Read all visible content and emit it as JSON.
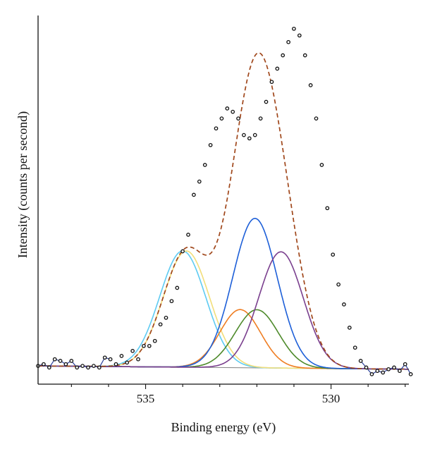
{
  "chart_data": {
    "type": "line",
    "xlabel": "Binding energy (eV)",
    "ylabel": "Intensity (counts per second)",
    "x_reversed": true,
    "xlim": [
      537.9,
      527.9
    ],
    "ylim": [
      -0.5,
      10.6
    ],
    "xticks": [
      535,
      530
    ],
    "xtick_labels": [
      "535",
      "530"
    ],
    "grid": false,
    "legend": "none",
    "baseline": {
      "y_start": 0.05,
      "y_end": -0.05,
      "color": "#8a8a8a"
    },
    "components": [
      {
        "center": 534.0,
        "amplitude": 3.5,
        "sigma": 0.62,
        "color": "#5ecbf2"
      },
      {
        "center": 533.9,
        "amplitude": 3.5,
        "sigma": 0.62,
        "color": "#f2de7a"
      },
      {
        "center": 532.45,
        "amplitude": 1.75,
        "sigma": 0.55,
        "color": "#ef7d22"
      },
      {
        "center": 532.0,
        "amplitude": 1.75,
        "sigma": 0.58,
        "color": "#4e8a2b"
      },
      {
        "center": 532.05,
        "amplitude": 4.5,
        "sigma": 0.6,
        "color": "#1d5fd8"
      },
      {
        "center": 531.35,
        "amplitude": 3.5,
        "sigma": 0.6,
        "color": "#7a3f8e"
      }
    ],
    "fit_color": "#a0471b",
    "data_color": "#111111",
    "data_points": [
      {
        "x": 537.9,
        "y": 0.05
      },
      {
        "x": 537.75,
        "y": 0.1
      },
      {
        "x": 537.6,
        "y": 0.0
      },
      {
        "x": 537.45,
        "y": 0.25
      },
      {
        "x": 537.3,
        "y": 0.2
      },
      {
        "x": 537.15,
        "y": 0.1
      },
      {
        "x": 537.0,
        "y": 0.2
      },
      {
        "x": 536.85,
        "y": 0.0
      },
      {
        "x": 536.7,
        "y": 0.05
      },
      {
        "x": 536.55,
        "y": 0.0
      },
      {
        "x": 536.4,
        "y": 0.05
      },
      {
        "x": 536.25,
        "y": 0.0
      },
      {
        "x": 536.1,
        "y": 0.3
      },
      {
        "x": 535.95,
        "y": 0.25
      },
      {
        "x": 535.8,
        "y": 0.1
      },
      {
        "x": 535.65,
        "y": 0.35
      },
      {
        "x": 535.5,
        "y": 0.15
      },
      {
        "x": 535.35,
        "y": 0.5
      },
      {
        "x": 535.2,
        "y": 0.25
      },
      {
        "x": 535.05,
        "y": 0.65
      },
      {
        "x": 534.9,
        "y": 0.65
      },
      {
        "x": 534.75,
        "y": 0.8
      },
      {
        "x": 534.6,
        "y": 1.3
      },
      {
        "x": 534.45,
        "y": 1.5
      },
      {
        "x": 534.3,
        "y": 2.0
      },
      {
        "x": 534.15,
        "y": 2.4
      },
      {
        "x": 534.0,
        "y": 3.5
      },
      {
        "x": 533.85,
        "y": 4.0
      },
      {
        "x": 533.7,
        "y": 5.2
      },
      {
        "x": 533.55,
        "y": 5.6
      },
      {
        "x": 533.4,
        "y": 6.1
      },
      {
        "x": 533.25,
        "y": 6.7
      },
      {
        "x": 533.1,
        "y": 7.2
      },
      {
        "x": 532.95,
        "y": 7.5
      },
      {
        "x": 532.8,
        "y": 7.8
      },
      {
        "x": 532.65,
        "y": 7.7
      },
      {
        "x": 532.5,
        "y": 7.5
      },
      {
        "x": 532.35,
        "y": 7.0
      },
      {
        "x": 532.2,
        "y": 6.9
      },
      {
        "x": 532.05,
        "y": 7.0
      },
      {
        "x": 531.9,
        "y": 7.5
      },
      {
        "x": 531.75,
        "y": 8.0
      },
      {
        "x": 531.6,
        "y": 8.6
      },
      {
        "x": 531.45,
        "y": 9.0
      },
      {
        "x": 531.3,
        "y": 9.4
      },
      {
        "x": 531.15,
        "y": 9.8
      },
      {
        "x": 531.0,
        "y": 10.2
      },
      {
        "x": 530.85,
        "y": 10.0
      },
      {
        "x": 530.7,
        "y": 9.4
      },
      {
        "x": 530.55,
        "y": 8.5
      },
      {
        "x": 530.4,
        "y": 7.5
      },
      {
        "x": 530.25,
        "y": 6.1
      },
      {
        "x": 530.1,
        "y": 4.8
      },
      {
        "x": 529.95,
        "y": 3.4
      },
      {
        "x": 529.8,
        "y": 2.5
      },
      {
        "x": 529.65,
        "y": 1.9
      },
      {
        "x": 529.5,
        "y": 1.2
      },
      {
        "x": 529.35,
        "y": 0.6
      },
      {
        "x": 529.2,
        "y": 0.2
      },
      {
        "x": 529.05,
        "y": 0.0
      },
      {
        "x": 528.9,
        "y": -0.2
      },
      {
        "x": 528.75,
        "y": -0.1
      },
      {
        "x": 528.6,
        "y": -0.15
      },
      {
        "x": 528.45,
        "y": -0.05
      },
      {
        "x": 528.3,
        "y": 0.0
      },
      {
        "x": 528.15,
        "y": -0.1
      },
      {
        "x": 528.0,
        "y": 0.1
      },
      {
        "x": 527.85,
        "y": -0.2
      }
    ]
  }
}
